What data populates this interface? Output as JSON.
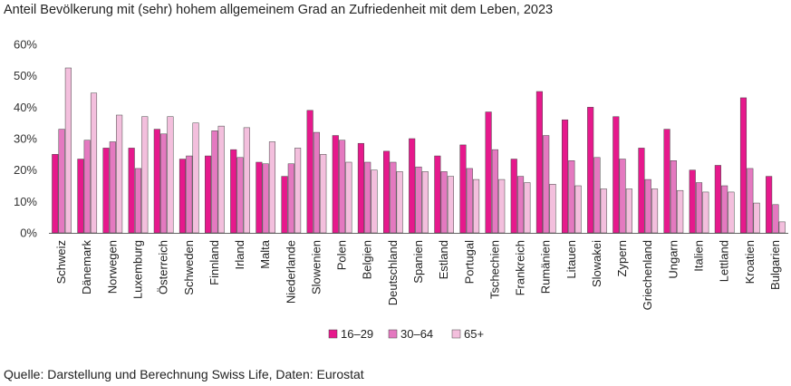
{
  "chart_data": {
    "type": "bar",
    "title": "Anteil Bevölkerung mit (sehr) hohem allgemeinem Grad an Zufriedenheit mit dem Leben, 2023",
    "source": "Quelle: Darstellung und Berechnung Swiss Life, Daten: Eurostat",
    "ylim": [
      0,
      60
    ],
    "yticks": [
      0,
      10,
      20,
      30,
      40,
      50,
      60
    ],
    "ytick_labels": [
      "0%",
      "10%",
      "20%",
      "30%",
      "40%",
      "50%",
      "60%"
    ],
    "grid": false,
    "legend_position": "bottom-center",
    "categories": [
      "Schweiz",
      "Dänemark",
      "Norwegen",
      "Luxemburg",
      "Österreich",
      "Schweden",
      "Finnland",
      "Irland",
      "Malta",
      "Niederlande",
      "Slowenien",
      "Polen",
      "Belgien",
      "Deutschland",
      "Spanien",
      "Estland",
      "Portugal",
      "Tschechien",
      "Frankreich",
      "Rumänien",
      "Litauen",
      "Slowakei",
      "Zypern",
      "Griechenland",
      "Ungarn",
      "Italien",
      "Lettland",
      "Kroatien",
      "Bulgarien"
    ],
    "series": [
      {
        "name": "16–29",
        "color": "#e6198c",
        "values": [
          25,
          23.5,
          27,
          27,
          33,
          23.5,
          24.5,
          26.5,
          22.5,
          18,
          39,
          31,
          28.5,
          26,
          30,
          24.5,
          28,
          38.5,
          23.5,
          45,
          36,
          40,
          37,
          27,
          33,
          20,
          21.5,
          43,
          18
        ]
      },
      {
        "name": "30–64",
        "color": "#e479c0",
        "values": [
          33,
          29.5,
          29,
          20.5,
          31.5,
          24.5,
          32.5,
          24,
          22,
          22,
          32,
          29.5,
          22.5,
          22.5,
          21,
          19.5,
          20.5,
          26.5,
          18,
          31,
          23,
          24,
          23.5,
          17,
          23,
          16,
          15,
          20.5,
          9
        ]
      },
      {
        "name": "65+",
        "color": "#f3bfdd",
        "values": [
          52.5,
          44.5,
          37.5,
          37,
          37,
          35,
          34,
          33.5,
          29,
          27,
          25,
          22.5,
          20,
          19.5,
          19.5,
          18,
          17,
          17,
          16,
          15.5,
          15,
          14,
          14,
          14,
          13.5,
          13,
          13,
          9.5,
          3.5
        ]
      }
    ]
  }
}
